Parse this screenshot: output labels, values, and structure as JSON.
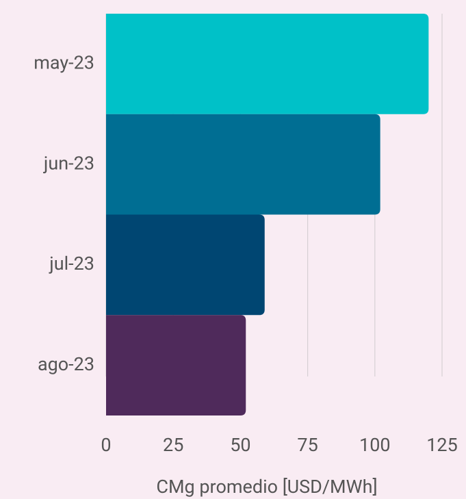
{
  "chart_data": {
    "type": "hbar",
    "categories": [
      "may-23",
      "jun-23",
      "jul-23",
      "ago-23"
    ],
    "values": [
      120,
      102,
      59,
      52
    ],
    "colors": [
      "#00c1c8",
      "#006e93",
      "#004672",
      "#4f2a5b"
    ],
    "xlabel": "CMg promedio [USD/MWh]",
    "xlim": [
      0,
      125
    ],
    "xticks": [
      0,
      25,
      50,
      75,
      100,
      125
    ],
    "grid": true
  }
}
